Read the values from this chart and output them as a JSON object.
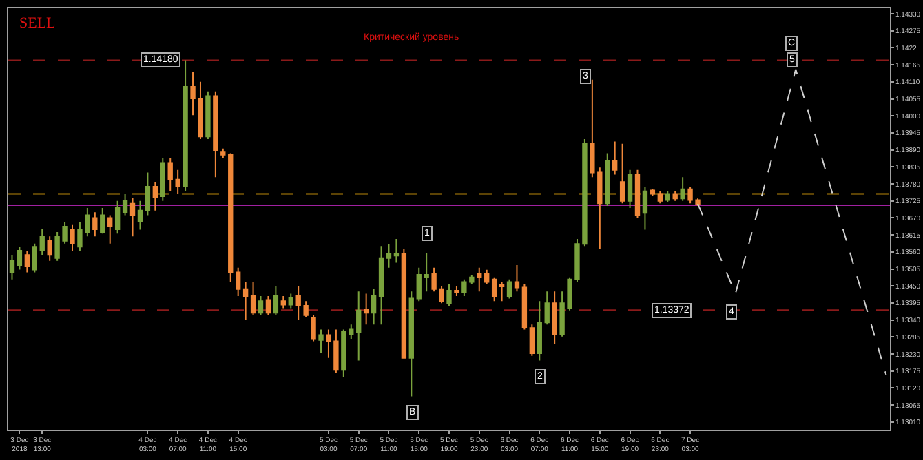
{
  "chart_data": {
    "type": "candlestick",
    "annotations": [
      "SELL",
      "Критический уровень",
      {
        "text": "1.14180",
        "y": 1.1418
      },
      {
        "text": "1.13372",
        "y": 1.13372
      },
      {
        "text": "1",
        "y": 1.1362
      },
      {
        "text": "B",
        "y": 1.13041
      },
      {
        "text": "2",
        "y": 1.13157
      },
      {
        "text": "3",
        "y": 1.14127
      },
      {
        "text": "4",
        "y": 1.13365
      },
      {
        "text": "5",
        "y": 1.14183
      },
      {
        "text": "C",
        "y": 1.14233
      }
    ],
    "categories": [
      null,
      "3 Dec 2018",
      null,
      null,
      "3 Dec 13:00",
      null,
      null,
      null,
      null,
      null,
      null,
      null,
      null,
      null,
      null,
      null,
      null,
      null,
      "4 Dec 03:00",
      null,
      null,
      null,
      "4 Dec 07:00",
      null,
      null,
      null,
      "4 Dec 11:00",
      null,
      null,
      null,
      "4 Dec 15:00",
      null,
      null,
      null,
      null,
      null,
      null,
      null,
      null,
      null,
      null,
      null,
      "5 Dec 03:00",
      null,
      null,
      null,
      "5 Dec 07:00",
      null,
      null,
      null,
      "5 Dec 11:00",
      null,
      null,
      null,
      "5 Dec 15:00",
      null,
      null,
      null,
      "5 Dec 19:00",
      null,
      null,
      null,
      "5 Dec 23:00",
      null,
      null,
      null,
      "6 Dec 03:00",
      null,
      null,
      null,
      "6 Dec 07:00",
      null,
      null,
      null,
      "6 Dec 11:00",
      null,
      null,
      null,
      "6 Dec 15:00",
      null,
      null,
      null,
      "6 Dec 19:00",
      null,
      null,
      null,
      "6 Dec 23:00",
      null,
      null,
      null,
      "7 Dec 03:00",
      null,
      null,
      null,
      null,
      null,
      null,
      null,
      null,
      null,
      null,
      null,
      null,
      null,
      null,
      null,
      null,
      null,
      null,
      null,
      null,
      null,
      null,
      null,
      null,
      null,
      null
    ],
    "ohlc": [
      [
        1.13494,
        1.1355,
        1.13471,
        1.13531
      ],
      [
        1.13517,
        1.13577,
        1.13503,
        1.13564
      ],
      [
        1.1355,
        1.13564,
        1.13494,
        1.13513
      ],
      [
        1.13503,
        1.13587,
        1.13494,
        1.13577
      ],
      [
        1.13564,
        1.13633,
        1.1355,
        1.1361
      ],
      [
        1.13596,
        1.1361,
        1.13531,
        1.1355
      ],
      [
        1.1354,
        1.13624,
        1.13531,
        1.1361
      ],
      [
        1.13596,
        1.13656,
        1.13587,
        1.13642
      ],
      [
        1.13633,
        1.13647,
        1.13564,
        1.13587
      ],
      [
        1.13577,
        1.13656,
        1.13564,
        1.13633
      ],
      [
        1.13624,
        1.13702,
        1.1361,
        1.13679
      ],
      [
        1.1367,
        1.13688,
        1.1361,
        1.13633
      ],
      [
        1.13624,
        1.13702,
        1.13619,
        1.13679
      ],
      [
        1.1367,
        1.13679,
        1.13587,
        1.13642
      ],
      [
        1.13633,
        1.13725,
        1.13619,
        1.13702
      ],
      [
        1.13688,
        1.13748,
        1.13679,
        1.13725
      ],
      [
        1.13716,
        1.13734,
        1.1361,
        1.13679
      ],
      [
        1.1366,
        1.13725,
        1.13632,
        1.13694
      ],
      [
        1.13694,
        1.13817,
        1.13679,
        1.13771
      ],
      [
        1.13771,
        1.13786,
        1.13694,
        1.13737
      ],
      [
        1.1374,
        1.13863,
        1.13725,
        1.13848
      ],
      [
        1.13848,
        1.13863,
        1.13756,
        1.13794
      ],
      [
        1.13794,
        1.13825,
        1.13748,
        1.13771
      ],
      [
        1.13771,
        1.1418,
        1.13756,
        1.14094
      ],
      [
        1.14094,
        1.14141,
        1.14002,
        1.14056
      ],
      [
        1.14056,
        1.1411,
        1.13925,
        1.13933
      ],
      [
        1.13933,
        1.14079,
        1.13925,
        1.14064
      ],
      [
        1.14064,
        1.14079,
        1.13802,
        1.13887
      ],
      [
        1.13882,
        1.13894,
        1.13863,
        1.13874
      ],
      [
        1.13876,
        1.13879,
        1.13463,
        1.13494
      ],
      [
        1.13494,
        1.13509,
        1.13417,
        1.1344
      ],
      [
        1.1344,
        1.13463,
        1.1334,
        1.13417
      ],
      [
        1.13417,
        1.13463,
        1.13355,
        1.13363
      ],
      [
        1.13363,
        1.13417,
        1.13355,
        1.13401
      ],
      [
        1.13405,
        1.13417,
        1.13355,
        1.13363
      ],
      [
        1.13363,
        1.13448,
        1.13355,
        1.13417
      ],
      [
        1.13401,
        1.13417,
        1.13378,
        1.13389
      ],
      [
        1.13389,
        1.13425,
        1.13378,
        1.13412
      ],
      [
        1.13417,
        1.13448,
        1.1334,
        1.13386
      ],
      [
        1.13386,
        1.13401,
        1.13348,
        1.13355
      ],
      [
        1.13348,
        1.13355,
        1.13271,
        1.13278
      ],
      [
        1.13275,
        1.13309,
        1.13232,
        1.13291
      ],
      [
        1.13291,
        1.13309,
        1.13217,
        1.13271
      ],
      [
        1.13271,
        1.13309,
        1.1317,
        1.13178
      ],
      [
        1.13178,
        1.13309,
        1.13155,
        1.13301
      ],
      [
        1.13294,
        1.13325,
        1.13278,
        1.13309
      ],
      [
        1.13301,
        1.13432,
        1.13209,
        1.13371
      ],
      [
        1.13374,
        1.13425,
        1.13325,
        1.13363
      ],
      [
        1.13363,
        1.1344,
        1.13325,
        1.13417
      ],
      [
        1.13417,
        1.13579,
        1.13325,
        1.1354
      ],
      [
        1.1354,
        1.13586,
        1.13509,
        1.13555
      ],
      [
        1.13548,
        1.13602,
        1.13525,
        1.13555
      ],
      [
        1.13555,
        1.13571,
        1.13217,
        1.13217
      ],
      [
        1.13217,
        1.13432,
        1.13093,
        1.13409
      ],
      [
        1.13409,
        1.13509,
        1.13401,
        1.13486
      ],
      [
        1.13478,
        1.13555,
        1.13432,
        1.13486
      ],
      [
        1.13489,
        1.13509,
        1.13432,
        1.1344
      ],
      [
        1.1344,
        1.13448,
        1.13394,
        1.13401
      ],
      [
        1.13394,
        1.13455,
        1.13386,
        1.13435
      ],
      [
        1.13435,
        1.13448,
        1.13417,
        1.13429
      ],
      [
        1.13429,
        1.13471,
        1.13417,
        1.13463
      ],
      [
        1.13463,
        1.13486,
        1.13455,
        1.13478
      ],
      [
        1.13489,
        1.13509,
        1.13432,
        1.13478
      ],
      [
        1.13489,
        1.13502,
        1.13455,
        1.13463
      ],
      [
        1.13471,
        1.13478,
        1.13401,
        1.13417
      ],
      [
        1.13455,
        1.13463,
        1.13401,
        1.13448
      ],
      [
        1.13417,
        1.13471,
        1.13409,
        1.13463
      ],
      [
        1.13463,
        1.13517,
        1.13432,
        1.13445
      ],
      [
        1.13445,
        1.13455,
        1.13309,
        1.13317
      ],
      [
        1.13314,
        1.13325,
        1.13224,
        1.13232
      ],
      [
        1.13232,
        1.13401,
        1.13209,
        1.13332
      ],
      [
        1.13332,
        1.13432,
        1.13325,
        1.13394
      ],
      [
        1.13394,
        1.13432,
        1.13263,
        1.13294
      ],
      [
        1.13294,
        1.13432,
        1.13286,
        1.13394
      ],
      [
        1.13378,
        1.13478,
        1.13371,
        1.13471
      ],
      [
        1.13471,
        1.13602,
        1.13463,
        1.13586
      ],
      [
        1.13586,
        1.13925,
        1.13579,
        1.1391
      ],
      [
        1.1391,
        1.14117,
        1.13802,
        1.13817
      ],
      [
        1.13817,
        1.13833,
        1.13571,
        1.13717
      ],
      [
        1.13717,
        1.13879,
        1.13709,
        1.13856
      ],
      [
        1.13856,
        1.13917,
        1.1381,
        1.13825
      ],
      [
        1.13786,
        1.1391,
        1.13717,
        1.13725
      ],
      [
        1.13725,
        1.13825,
        1.13702,
        1.1381
      ],
      [
        1.1381,
        1.13825,
        1.13671,
        1.13679
      ],
      [
        1.13686,
        1.13771,
        1.13632,
        1.13756
      ],
      [
        1.13759,
        1.13763,
        1.1374,
        1.13748
      ],
      [
        1.13748,
        1.13756,
        1.13717,
        1.13725
      ],
      [
        1.13728,
        1.13756,
        1.13722,
        1.13748
      ],
      [
        1.13748,
        1.13756,
        1.13725,
        1.13733
      ],
      [
        1.13733,
        1.13802,
        1.13725,
        1.13763
      ],
      [
        1.13763,
        1.13771,
        1.13717,
        1.13728
      ],
      [
        1.13728,
        1.13733,
        1.13709,
        1.13713
      ],
      null,
      null,
      null,
      null,
      null,
      null,
      null,
      null,
      null,
      null,
      null,
      null,
      null,
      null,
      null,
      null,
      null,
      null,
      null,
      null,
      null,
      null,
      null,
      null,
      null
    ],
    "colors": [
      "#7ba33d",
      "#7ba33d",
      "#f0883a",
      "#7ba33d",
      "#7ba33d",
      "#f0883a",
      "#7ba33d",
      "#7ba33d",
      "#f0883a",
      "#7ba33d",
      "#7ba33d",
      "#f0883a",
      "#7ba33d",
      "#f0883a",
      "#7ba33d",
      "#7ba33d",
      "#f0883a",
      "#7ba33d",
      "#7ba33d",
      "#f0883a",
      "#7ba33d",
      "#f0883a",
      "#f0883a",
      "#7ba33d",
      "#f0883a",
      "#f0883a",
      "#7ba33d",
      "#f0883a",
      "#f0883a",
      "#f0883a",
      "#f0883a",
      "#f0883a",
      "#f0883a",
      "#7ba33d",
      "#f0883a",
      "#7ba33d",
      "#f0883a",
      "#7ba33d",
      "#f0883a",
      "#f0883a",
      "#f0883a",
      "#7ba33d",
      "#f0883a",
      "#f0883a",
      "#7ba33d",
      "#7ba33d",
      "#7ba33d",
      "#f0883a",
      "#7ba33d",
      "#7ba33d",
      "#7ba33d",
      "#7ba33d",
      "#f0883a",
      "#7ba33d",
      "#7ba33d",
      "#7ba33d",
      "#f0883a",
      "#f0883a",
      "#7ba33d",
      "#f0883a",
      "#7ba33d",
      "#7ba33d",
      "#f0883a",
      "#f0883a",
      "#f0883a",
      "#f0883a",
      "#7ba33d",
      "#f0883a",
      "#f0883a",
      "#f0883a",
      "#7ba33d",
      "#7ba33d",
      "#f0883a",
      "#7ba33d",
      "#7ba33d",
      "#7ba33d",
      "#7ba33d",
      "#f0883a",
      "#f0883a",
      "#7ba33d",
      "#f0883a",
      "#f0883a",
      "#7ba33d",
      "#f0883a",
      "#7ba33d",
      "#f0883a",
      "#f0883a",
      "#7ba33d",
      "#f0883a",
      "#7ba33d",
      "#f0883a",
      "#f0883a",
      null,
      null,
      null,
      null,
      null,
      null,
      null,
      null,
      null,
      null,
      null,
      null,
      null,
      null,
      null,
      null,
      null,
      null,
      null,
      null,
      null,
      null,
      null,
      null,
      null
    ],
    "series": [
      {
        "type": "line",
        "values": [
          null,
          null,
          null,
          null,
          null,
          null,
          null,
          null,
          null,
          null,
          null,
          null,
          null,
          null,
          null,
          null,
          null,
          null,
          null,
          null,
          null,
          null,
          null,
          null,
          null,
          null,
          null,
          null,
          null,
          null,
          null,
          null,
          null,
          null,
          null,
          null,
          null,
          null,
          null,
          null,
          null,
          null,
          null,
          null,
          null,
          null,
          null,
          null,
          null,
          null,
          null,
          null,
          null,
          null,
          null,
          null,
          null,
          null,
          null,
          null,
          null,
          null,
          null,
          null,
          null,
          null,
          null,
          null,
          null,
          null,
          null,
          null,
          null,
          null,
          null,
          null,
          null,
          null,
          null,
          null,
          null,
          null,
          null,
          null,
          null,
          null,
          null,
          null,
          null,
          null,
          null,
          1.13716,
          null,
          null,
          null,
          null,
          1.13425,
          null,
          null,
          null,
          null,
          null,
          null,
          null,
          1.1415,
          null,
          null,
          null,
          null,
          null,
          null,
          null,
          null,
          null,
          null,
          null,
          1.13162
        ],
        "color": "#d0d0d0",
        "line_style": "dashed"
      }
    ],
    "ref_lines": [
      {
        "axis": "y",
        "value": 1.1418,
        "color": "#8b1a1a",
        "line_style": "dashed"
      },
      {
        "axis": "y",
        "value": 1.13748,
        "color": "#b8860b",
        "line_style": "dashed"
      },
      {
        "axis": "y",
        "value": 1.13711,
        "color": "#a020a0",
        "line_style": "solid"
      },
      {
        "axis": "y",
        "value": 1.13372,
        "color": "#8b1a1a",
        "line_style": "dashed"
      }
    ],
    "ylim": [
      1.12985,
      1.14348
    ],
    "yticks": [
      {
        "value": 1.1433,
        "label": "1.14330"
      },
      1.14275,
      1.1422,
      1.14165,
      {
        "value": 1.1411,
        "label": "1.14110"
      },
      1.14055,
      {
        "value": 1.14,
        "label": "1.14000"
      },
      1.13945,
      {
        "value": 1.1389,
        "label": "1.13890"
      },
      1.13835,
      {
        "value": 1.1378,
        "label": "1.13780"
      },
      1.13725,
      {
        "value": 1.1367,
        "label": "1.13670"
      },
      1.13615,
      {
        "value": 1.1356,
        "label": "1.13560"
      },
      1.13505,
      {
        "value": 1.1345,
        "label": "1.13450"
      },
      1.13395,
      {
        "value": 1.1334,
        "label": "1.13340"
      },
      1.13285,
      {
        "value": 1.1323,
        "label": "1.13230"
      },
      1.13175,
      {
        "value": 1.1312,
        "label": "1.13120"
      },
      1.13065,
      {
        "value": 1.1301,
        "label": "1.13010"
      }
    ]
  }
}
